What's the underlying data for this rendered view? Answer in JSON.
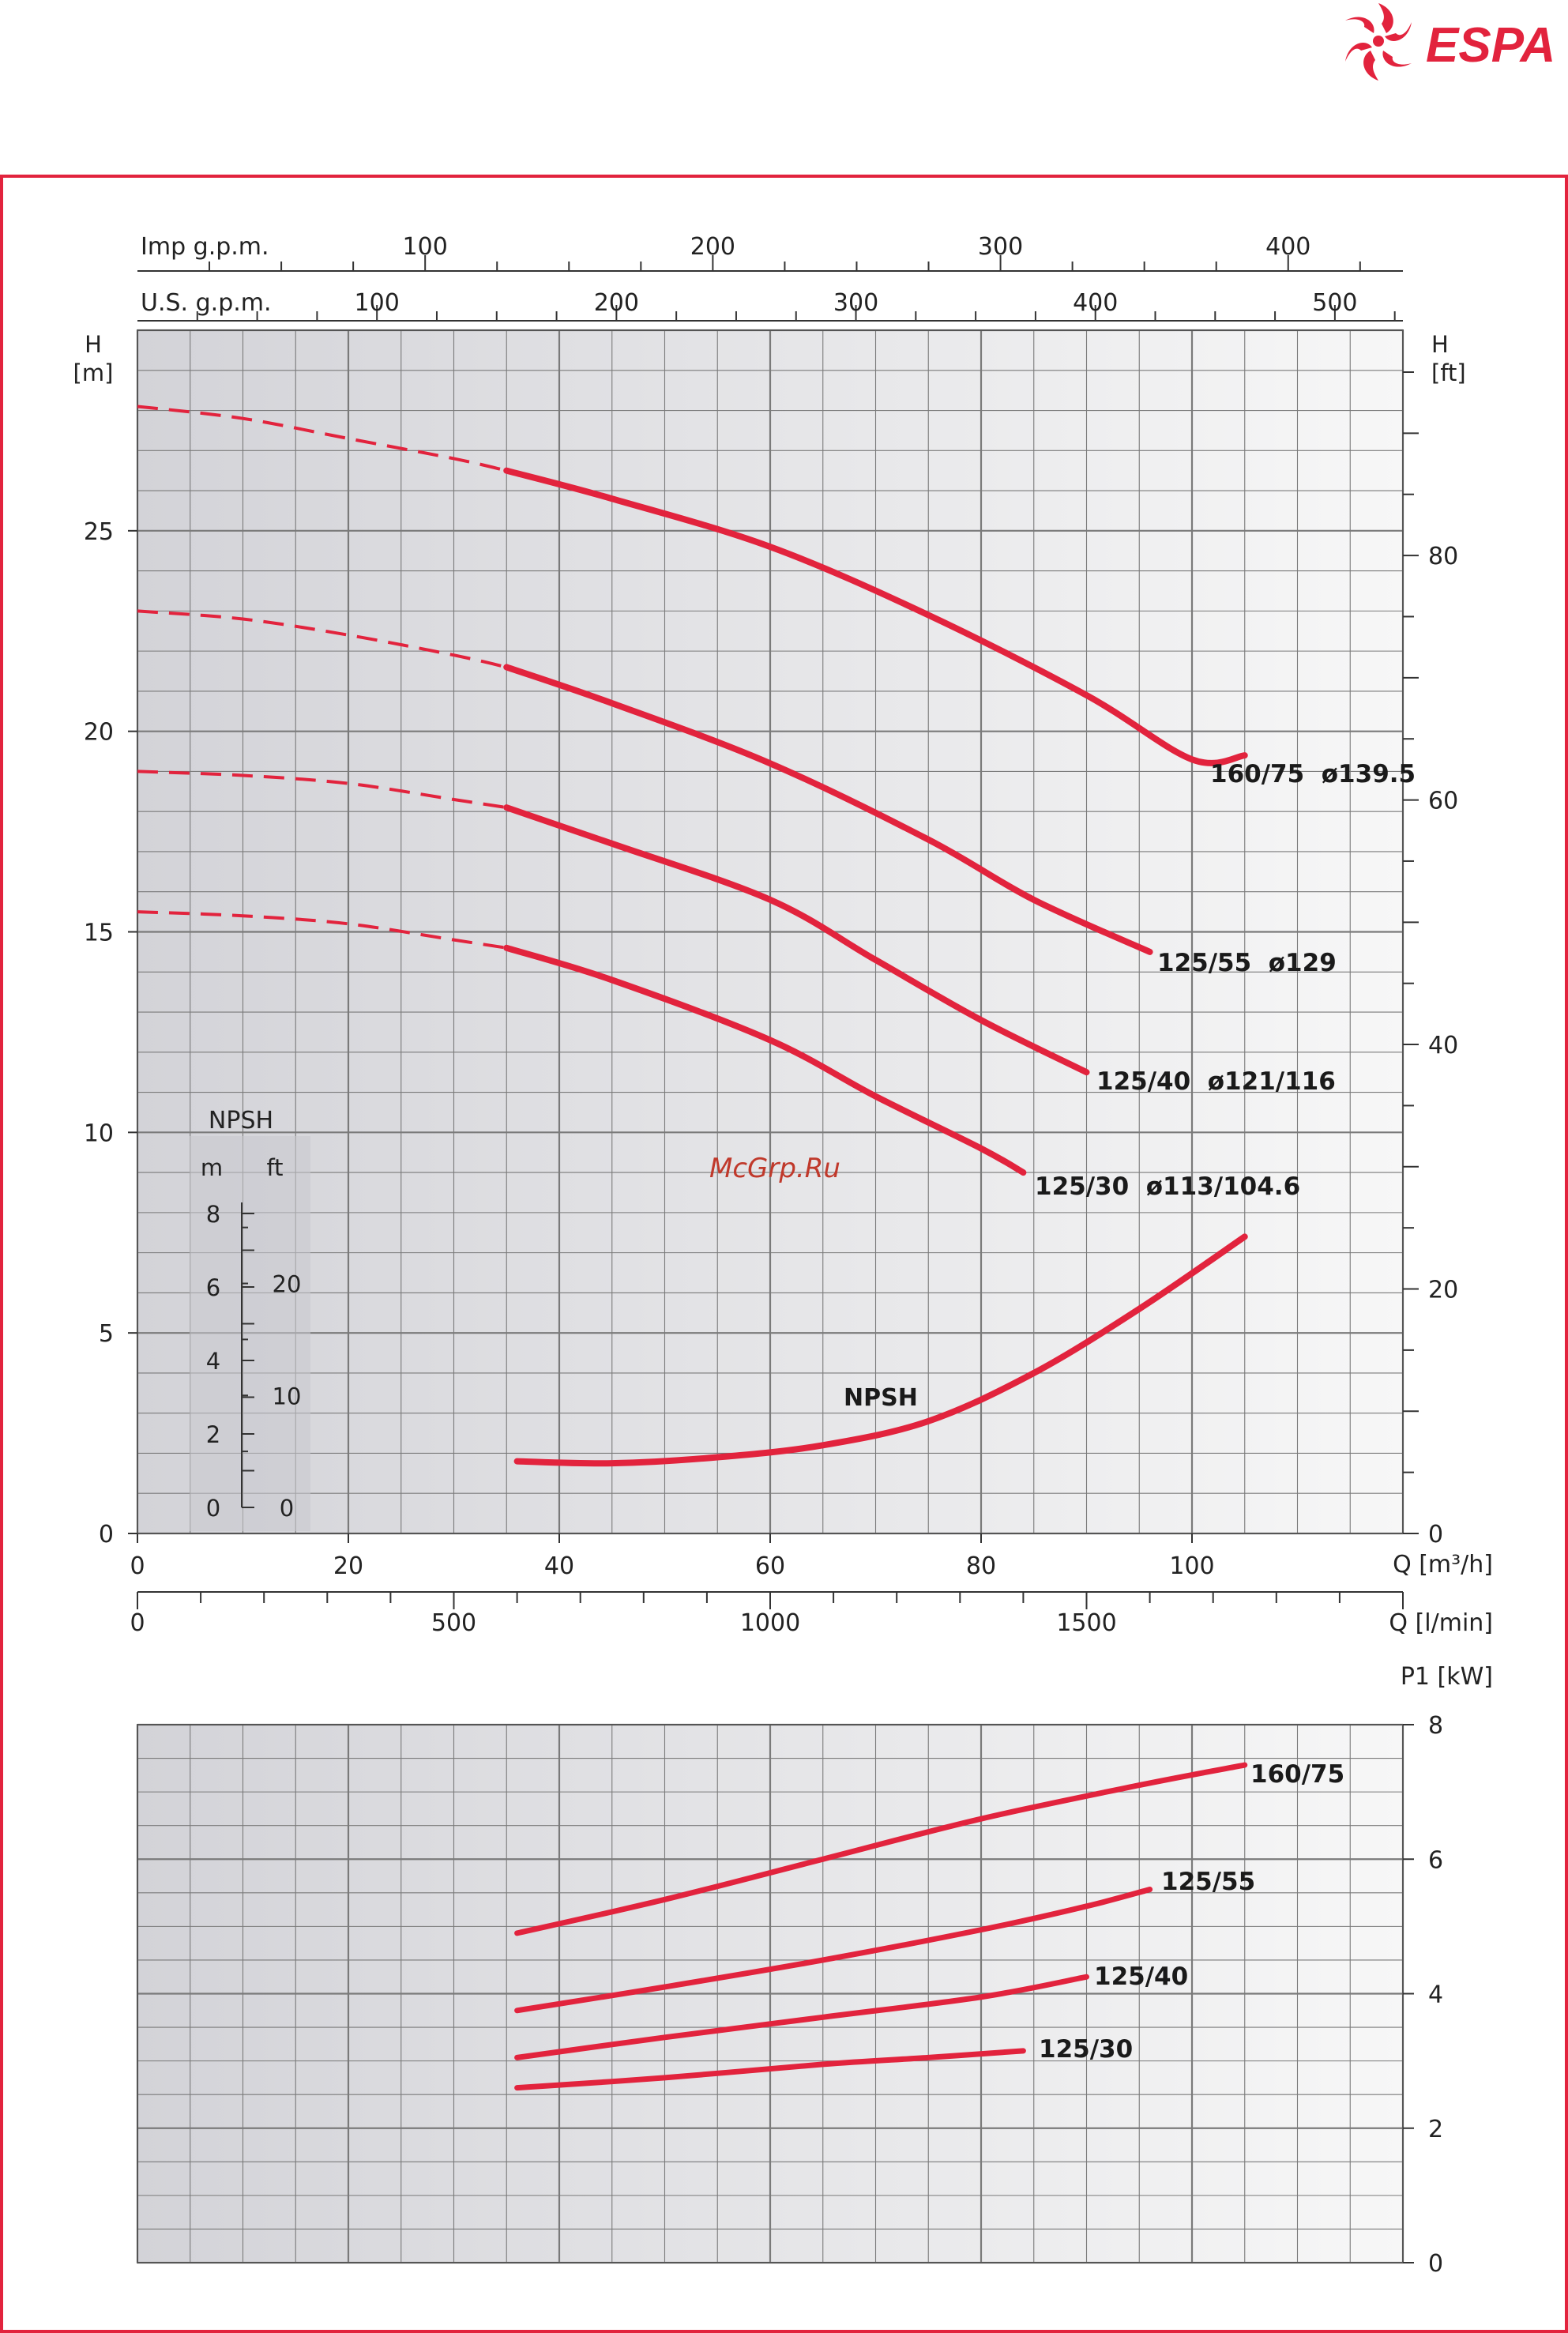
{
  "brand": {
    "name": "ESPA",
    "color": "#e2233d"
  },
  "watermark": "McGrp.Ru",
  "colors": {
    "curve": "#e2233d",
    "frame": "#e2233d",
    "grid": "#7a7a7a"
  },
  "chart_data": [
    {
      "type": "line",
      "title": "",
      "xlabel": "Q [m³/h]",
      "ylabel_left": "H [m]",
      "ylabel_right": "H [ft]",
      "xlim": [
        0,
        120
      ],
      "ylim": [
        0,
        30
      ],
      "x_ticks": [
        0,
        20,
        40,
        60,
        80,
        100
      ],
      "y_ticks": [
        0,
        5,
        10,
        15,
        20,
        25
      ],
      "right_ticks": [
        0,
        20,
        40,
        60,
        80
      ],
      "lmin_label": "Q [l/min]",
      "lmin_ticks": [
        0,
        500,
        1000,
        1500
      ],
      "imp_label": "Imp g.p.m.",
      "imp_ticks": [
        100,
        200,
        300,
        400
      ],
      "us_label": "U.S. g.p.m.",
      "us_ticks": [
        100,
        200,
        300,
        400,
        500
      ],
      "series": [
        {
          "name": "160/75  ø139.5",
          "dashed": [
            [
              0,
              28.1
            ],
            [
              10,
              27.8
            ],
            [
              20,
              27.3
            ],
            [
              30,
              26.8
            ],
            [
              35,
              26.5
            ]
          ],
          "solid": [
            [
              35,
              26.5
            ],
            [
              45,
              25.8
            ],
            [
              60,
              24.6
            ],
            [
              75,
              22.9
            ],
            [
              90,
              20.9
            ],
            [
              100,
              19.3
            ],
            [
              105,
              19.4
            ]
          ]
        },
        {
          "name": "125/55  ø129",
          "dashed": [
            [
              0,
              23.0
            ],
            [
              10,
              22.8
            ],
            [
              20,
              22.4
            ],
            [
              30,
              21.9
            ],
            [
              35,
              21.6
            ]
          ],
          "solid": [
            [
              35,
              21.6
            ],
            [
              45,
              20.7
            ],
            [
              60,
              19.2
            ],
            [
              75,
              17.3
            ],
            [
              85,
              15.8
            ],
            [
              96,
              14.5
            ]
          ]
        },
        {
          "name": "125/40  ø121/116",
          "dashed": [
            [
              0,
              19.0
            ],
            [
              10,
              18.9
            ],
            [
              20,
              18.7
            ],
            [
              30,
              18.3
            ],
            [
              35,
              18.1
            ]
          ],
          "solid": [
            [
              35,
              18.1
            ],
            [
              45,
              17.2
            ],
            [
              60,
              15.8
            ],
            [
              70,
              14.3
            ],
            [
              80,
              12.8
            ],
            [
              90,
              11.5
            ]
          ]
        },
        {
          "name": "125/30  ø113/104.6",
          "dashed": [
            [
              0,
              15.5
            ],
            [
              10,
              15.4
            ],
            [
              20,
              15.2
            ],
            [
              30,
              14.8
            ],
            [
              35,
              14.6
            ]
          ],
          "solid": [
            [
              35,
              14.6
            ],
            [
              45,
              13.8
            ],
            [
              60,
              12.3
            ],
            [
              70,
              10.9
            ],
            [
              80,
              9.6
            ],
            [
              84,
              9.0
            ]
          ]
        },
        {
          "name": "NPSH",
          "axis": "npsh",
          "solid": [
            [
              36,
              1.8
            ],
            [
              45,
              1.75
            ],
            [
              55,
              1.9
            ],
            [
              65,
              2.2
            ],
            [
              75,
              2.8
            ],
            [
              85,
              4.0
            ],
            [
              95,
              5.6
            ],
            [
              105,
              7.4
            ]
          ]
        }
      ],
      "npsh_scale": {
        "title": "NPSH",
        "m_label": "m",
        "ft_label": "ft",
        "m_ticks": [
          0,
          2,
          4,
          6,
          8
        ],
        "ft_ticks": [
          0,
          10,
          20
        ]
      }
    },
    {
      "type": "line",
      "title": "",
      "ylabel_right": "P1 [kW]",
      "xlim": [
        0,
        120
      ],
      "ylim": [
        0,
        8
      ],
      "y_ticks": [
        0,
        2,
        4,
        6,
        8
      ],
      "series": [
        {
          "name": "160/75",
          "solid": [
            [
              36,
              4.9
            ],
            [
              50,
              5.4
            ],
            [
              65,
              6.0
            ],
            [
              80,
              6.6
            ],
            [
              95,
              7.1
            ],
            [
              105,
              7.4
            ]
          ]
        },
        {
          "name": "125/55",
          "solid": [
            [
              36,
              3.75
            ],
            [
              50,
              4.1
            ],
            [
              65,
              4.5
            ],
            [
              80,
              4.95
            ],
            [
              90,
              5.3
            ],
            [
              96,
              5.55
            ]
          ]
        },
        {
          "name": "125/40",
          "solid": [
            [
              36,
              3.05
            ],
            [
              50,
              3.35
            ],
            [
              65,
              3.65
            ],
            [
              80,
              3.95
            ],
            [
              90,
              4.25
            ]
          ]
        },
        {
          "name": "125/30",
          "solid": [
            [
              36,
              2.6
            ],
            [
              50,
              2.75
            ],
            [
              65,
              2.95
            ],
            [
              75,
              3.05
            ],
            [
              84,
              3.15
            ]
          ]
        }
      ]
    }
  ]
}
